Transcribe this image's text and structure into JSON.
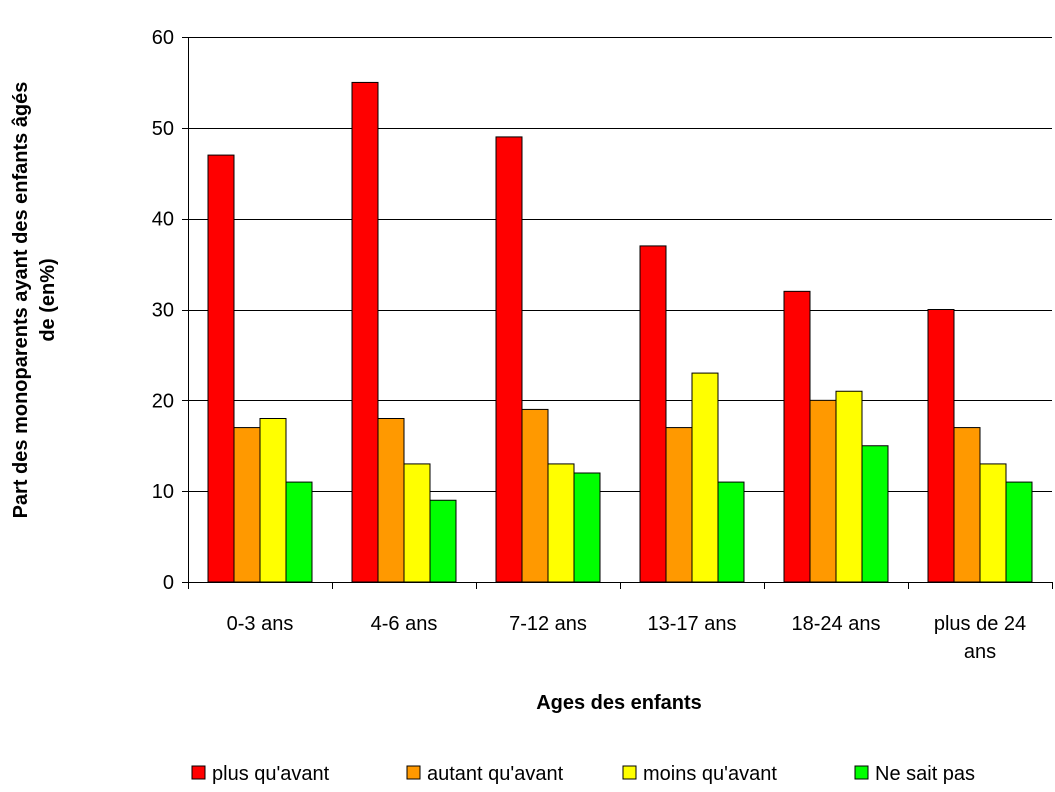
{
  "chart_data": {
    "type": "bar",
    "title": "",
    "xlabel": "Ages des enfants",
    "ylabel_lines": [
      "Part des monoparents ayant des enfants âgés",
      "de  (en%)"
    ],
    "ylim": [
      0,
      60
    ],
    "yticks": [
      0,
      10,
      20,
      30,
      40,
      50,
      60
    ],
    "grid": true,
    "legend_position": "bottom",
    "categories": [
      [
        "0-3 ans"
      ],
      [
        "4-6 ans"
      ],
      [
        "7-12 ans"
      ],
      [
        "13-17 ans"
      ],
      [
        "18-24 ans"
      ],
      [
        "plus de 24",
        "ans"
      ]
    ],
    "series": [
      {
        "name": "plus qu'avant",
        "color": "#ff0000",
        "values": [
          47,
          55,
          49,
          37,
          32,
          30
        ]
      },
      {
        "name": "autant qu'avant",
        "color": "#ff9900",
        "values": [
          17,
          18,
          19,
          17,
          20,
          17
        ]
      },
      {
        "name": "moins qu'avant",
        "color": "#ffff00",
        "values": [
          18,
          13,
          13,
          23,
          21,
          13
        ]
      },
      {
        "name": "Ne sait pas",
        "color": "#00ff00",
        "values": [
          11,
          9,
          12,
          11,
          15,
          11
        ]
      }
    ]
  }
}
